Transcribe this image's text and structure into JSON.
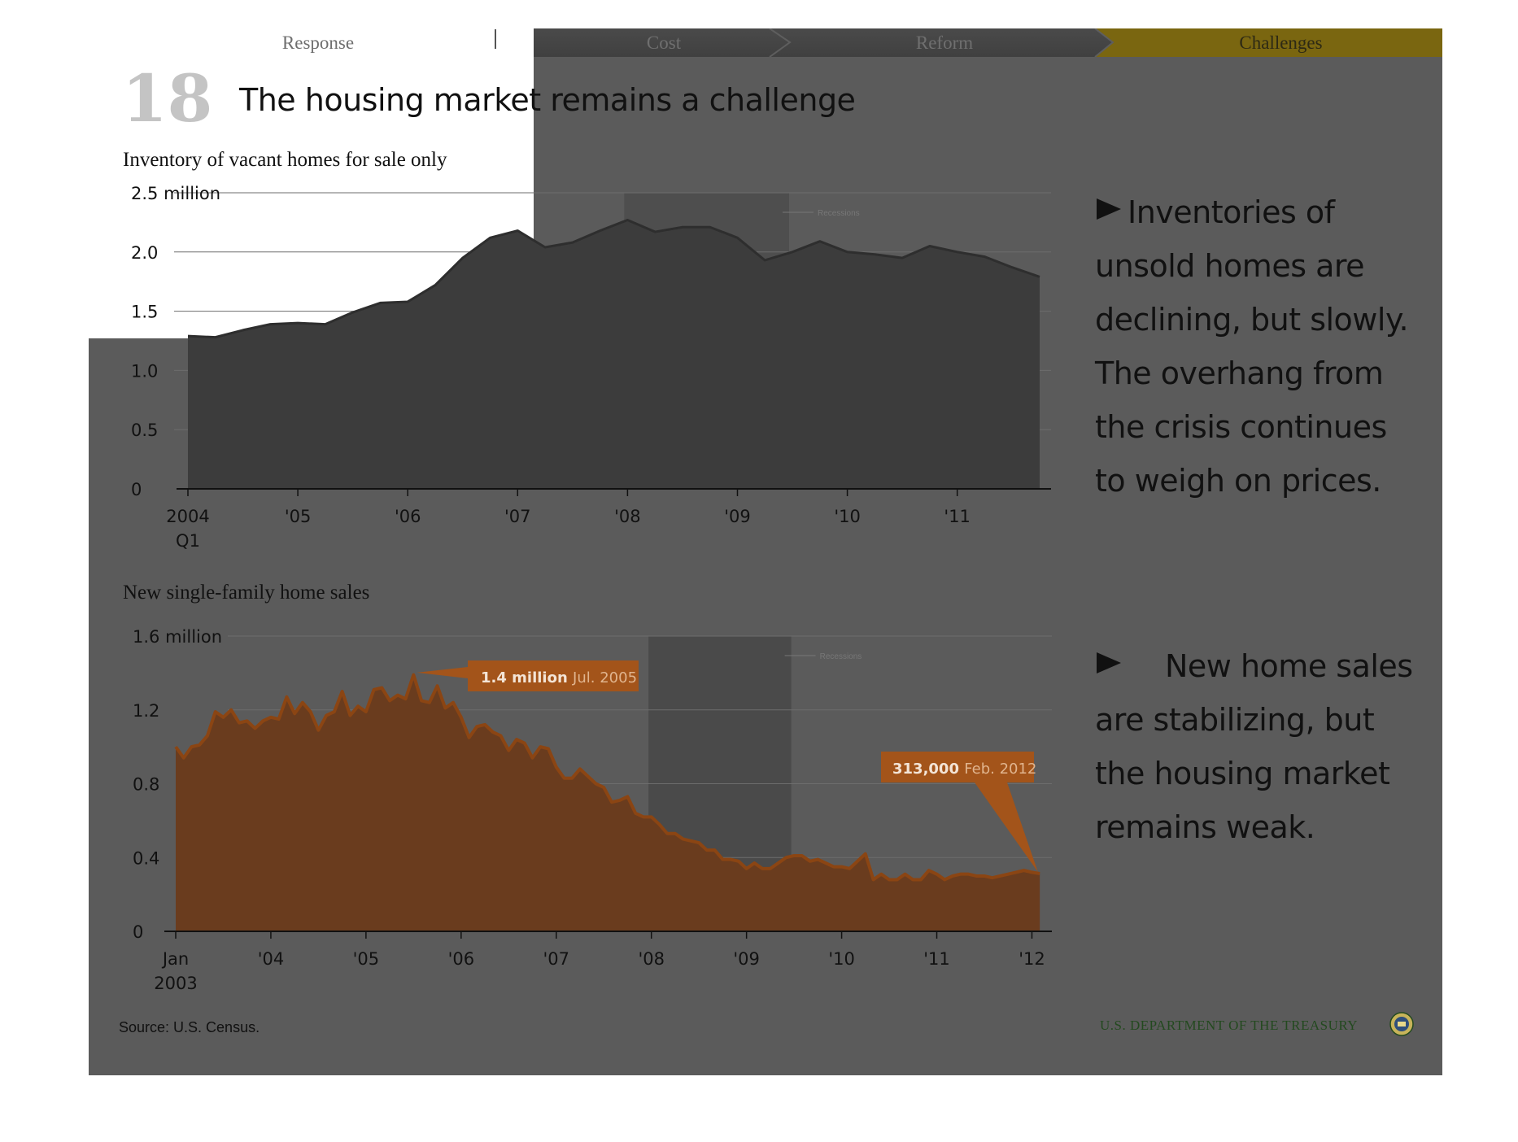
{
  "nav": {
    "tabs": [
      {
        "label": "Response",
        "active": false
      },
      {
        "label": "Cost",
        "active": false
      },
      {
        "label": "Reform",
        "active": false
      },
      {
        "label": "Challenges",
        "active": true
      }
    ],
    "active_color": "#7a6610"
  },
  "slide": {
    "number": "18",
    "title": "The housing market remains a challenge"
  },
  "bullets": [
    {
      "icon": "triangle-right-icon",
      "text": "Inventories of unsold homes are declining, but slowly. The overhang from the crisis continues to weigh on prices."
    },
    {
      "icon": "triangle-right-icon",
      "text": "New home sales are stabilizing, but the housing market remains weak."
    }
  ],
  "footer": {
    "source": "Source: U.S. Census.",
    "agency": "U.S. DEPARTMENT OF THE TREASURY"
  },
  "chart_data": [
    {
      "type": "area",
      "title": "Inventory of vacant homes for sale only",
      "xlabel": "",
      "ylabel": "",
      "y_unit_label": "2.5 million",
      "ylim": [
        0,
        2.5
      ],
      "yticks": [
        0,
        0.5,
        1.0,
        1.5,
        2.0,
        2.5
      ],
      "ytick_labels": [
        "0",
        "0.5",
        "1.0",
        "1.5",
        "2.0",
        "2.5 million"
      ],
      "xlim": [
        2004.0,
        2011.75
      ],
      "xtick_labels": [
        {
          "value": 2004,
          "label": "2004",
          "sublabel": "Q1"
        },
        {
          "value": 2005,
          "label": "'05"
        },
        {
          "value": 2006,
          "label": "'06"
        },
        {
          "value": 2007,
          "label": "'07"
        },
        {
          "value": 2008,
          "label": "'08"
        },
        {
          "value": 2009,
          "label": "'09"
        },
        {
          "value": 2010,
          "label": "'10"
        },
        {
          "value": 2011,
          "label": "'11"
        }
      ],
      "recession": {
        "start": 2007.97,
        "end": 2009.47,
        "label": "Recessions"
      },
      "grid": true,
      "fill_color": "#3c3c3c",
      "series": [
        {
          "x": [
            2004.0,
            2004.25,
            2004.5,
            2004.75,
            2005.0,
            2005.25,
            2005.5,
            2005.75,
            2006.0,
            2006.25,
            2006.5,
            2006.75,
            2007.0,
            2007.25,
            2007.5,
            2007.75,
            2008.0,
            2008.25,
            2008.5,
            2008.75,
            2009.0,
            2009.25,
            2009.5,
            2009.75,
            2010.0,
            2010.25,
            2010.5,
            2010.75,
            2011.0,
            2011.25,
            2011.5,
            2011.75
          ],
          "values": [
            1.29,
            1.28,
            1.34,
            1.39,
            1.4,
            1.39,
            1.49,
            1.57,
            1.58,
            1.72,
            1.95,
            2.12,
            2.18,
            2.04,
            2.08,
            2.18,
            2.27,
            2.17,
            2.21,
            2.21,
            2.12,
            1.93,
            2.0,
            2.09,
            2.0,
            1.98,
            1.95,
            2.05,
            2.0,
            1.96,
            1.87,
            1.79
          ]
        }
      ]
    },
    {
      "type": "area",
      "title": "New single-family home sales",
      "xlabel": "",
      "ylabel": "",
      "y_unit_label": "1.6 million",
      "ylim": [
        0,
        1.6
      ],
      "yticks": [
        0,
        0.4,
        0.8,
        1.2,
        1.6
      ],
      "ytick_labels": [
        "0",
        "0.4",
        "0.8",
        "1.2",
        "1.6 million"
      ],
      "xlim": [
        2003.0,
        2012.09
      ],
      "xtick_labels": [
        {
          "value": 2003,
          "label": "Jan",
          "sublabel": "2003"
        },
        {
          "value": 2004,
          "label": "'04"
        },
        {
          "value": 2005,
          "label": "'05"
        },
        {
          "value": 2006,
          "label": "'06"
        },
        {
          "value": 2007,
          "label": "'07"
        },
        {
          "value": 2008,
          "label": "'08"
        },
        {
          "value": 2009,
          "label": "'09"
        },
        {
          "value": 2010,
          "label": "'10"
        },
        {
          "value": 2011,
          "label": "'11"
        },
        {
          "value": 2012,
          "label": "'12"
        }
      ],
      "recession": {
        "start": 2007.97,
        "end": 2009.47,
        "label": "Recessions"
      },
      "grid": true,
      "fill_color": "#6a3c1e",
      "line_color": "#8b4513",
      "annotations": [
        {
          "bold": "1.4 million",
          "text": "Jul. 2005",
          "x": 2005.5,
          "y": 1.389
        },
        {
          "bold": "313,000",
          "text": "Feb. 2012",
          "x": 2012.08,
          "y": 0.313
        }
      ],
      "series": [
        {
          "x_start": 2003.0,
          "x_step": 0.08333,
          "values": [
            1.0,
            0.94,
            1.0,
            1.01,
            1.06,
            1.19,
            1.16,
            1.2,
            1.13,
            1.14,
            1.1,
            1.14,
            1.16,
            1.15,
            1.27,
            1.18,
            1.24,
            1.19,
            1.09,
            1.17,
            1.19,
            1.3,
            1.17,
            1.22,
            1.19,
            1.31,
            1.32,
            1.25,
            1.28,
            1.26,
            1.39,
            1.25,
            1.24,
            1.33,
            1.21,
            1.24,
            1.16,
            1.05,
            1.11,
            1.12,
            1.08,
            1.06,
            0.98,
            1.04,
            1.02,
            0.94,
            1.0,
            0.99,
            0.89,
            0.83,
            0.83,
            0.88,
            0.84,
            0.8,
            0.78,
            0.7,
            0.71,
            0.73,
            0.64,
            0.62,
            0.62,
            0.58,
            0.53,
            0.53,
            0.5,
            0.49,
            0.48,
            0.44,
            0.44,
            0.39,
            0.39,
            0.38,
            0.34,
            0.37,
            0.34,
            0.34,
            0.37,
            0.4,
            0.41,
            0.41,
            0.38,
            0.39,
            0.37,
            0.35,
            0.35,
            0.34,
            0.38,
            0.42,
            0.28,
            0.31,
            0.28,
            0.28,
            0.31,
            0.28,
            0.28,
            0.33,
            0.31,
            0.28,
            0.3,
            0.31,
            0.31,
            0.3,
            0.3,
            0.29,
            0.3,
            0.31,
            0.32,
            0.33,
            0.32,
            0.313
          ]
        }
      ]
    }
  ]
}
